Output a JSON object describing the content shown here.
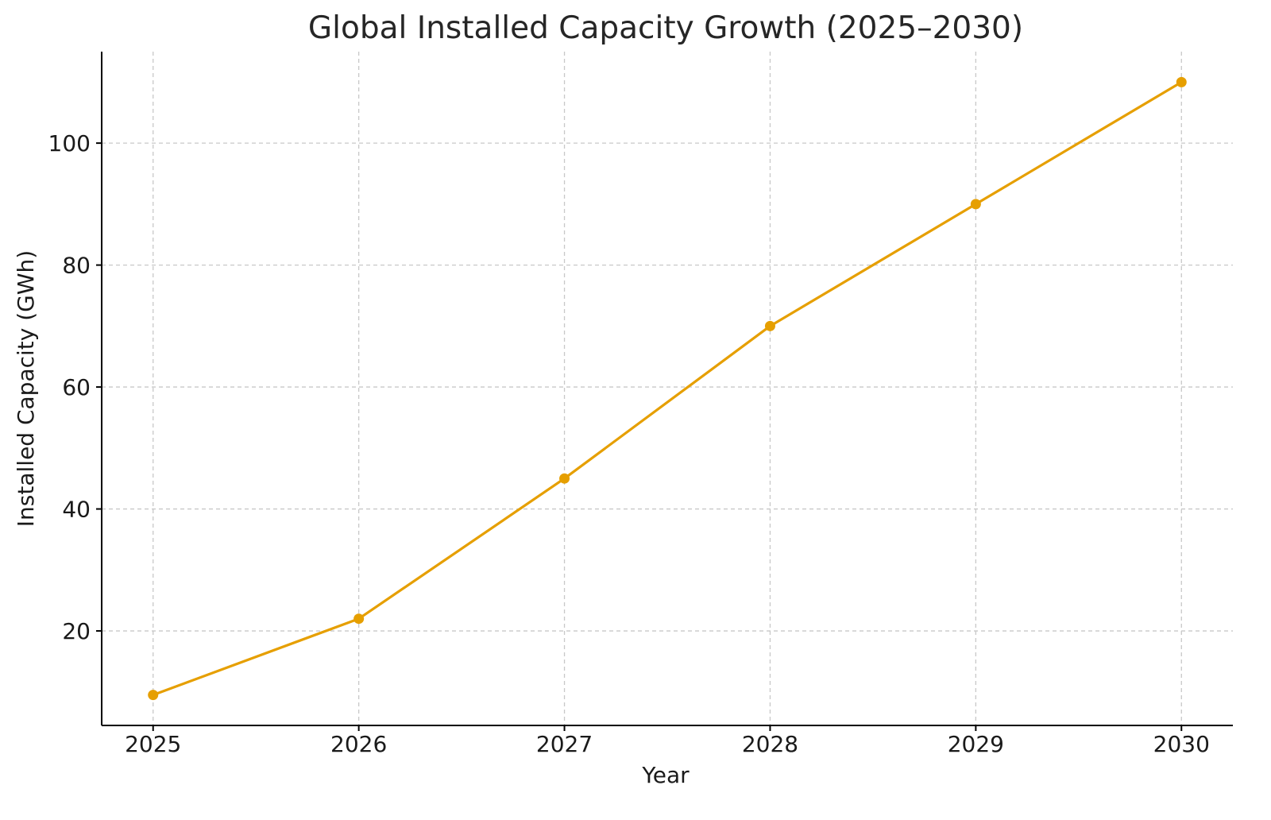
{
  "chart_data": {
    "type": "line",
    "title": "Global Installed Capacity Growth (2025–2030)",
    "xlabel": "Year",
    "ylabel": "Installed Capacity (GWh)",
    "x": [
      2025,
      2026,
      2027,
      2028,
      2029,
      2030
    ],
    "x_tick_labels": [
      "2025",
      "2026",
      "2027",
      "2028",
      "2029",
      "2030"
    ],
    "series": [
      {
        "name": "Installed Capacity",
        "values": [
          9.5,
          22,
          45,
          70,
          90,
          110
        ],
        "color": "#E69F00"
      }
    ],
    "y_ticks": [
      20,
      40,
      60,
      80,
      100
    ],
    "y_tick_labels": [
      "20",
      "40",
      "60",
      "80",
      "100"
    ],
    "xlim": [
      2024.75,
      2030.25
    ],
    "ylim": [
      4.5,
      115
    ],
    "grid": true,
    "legend": "none"
  }
}
